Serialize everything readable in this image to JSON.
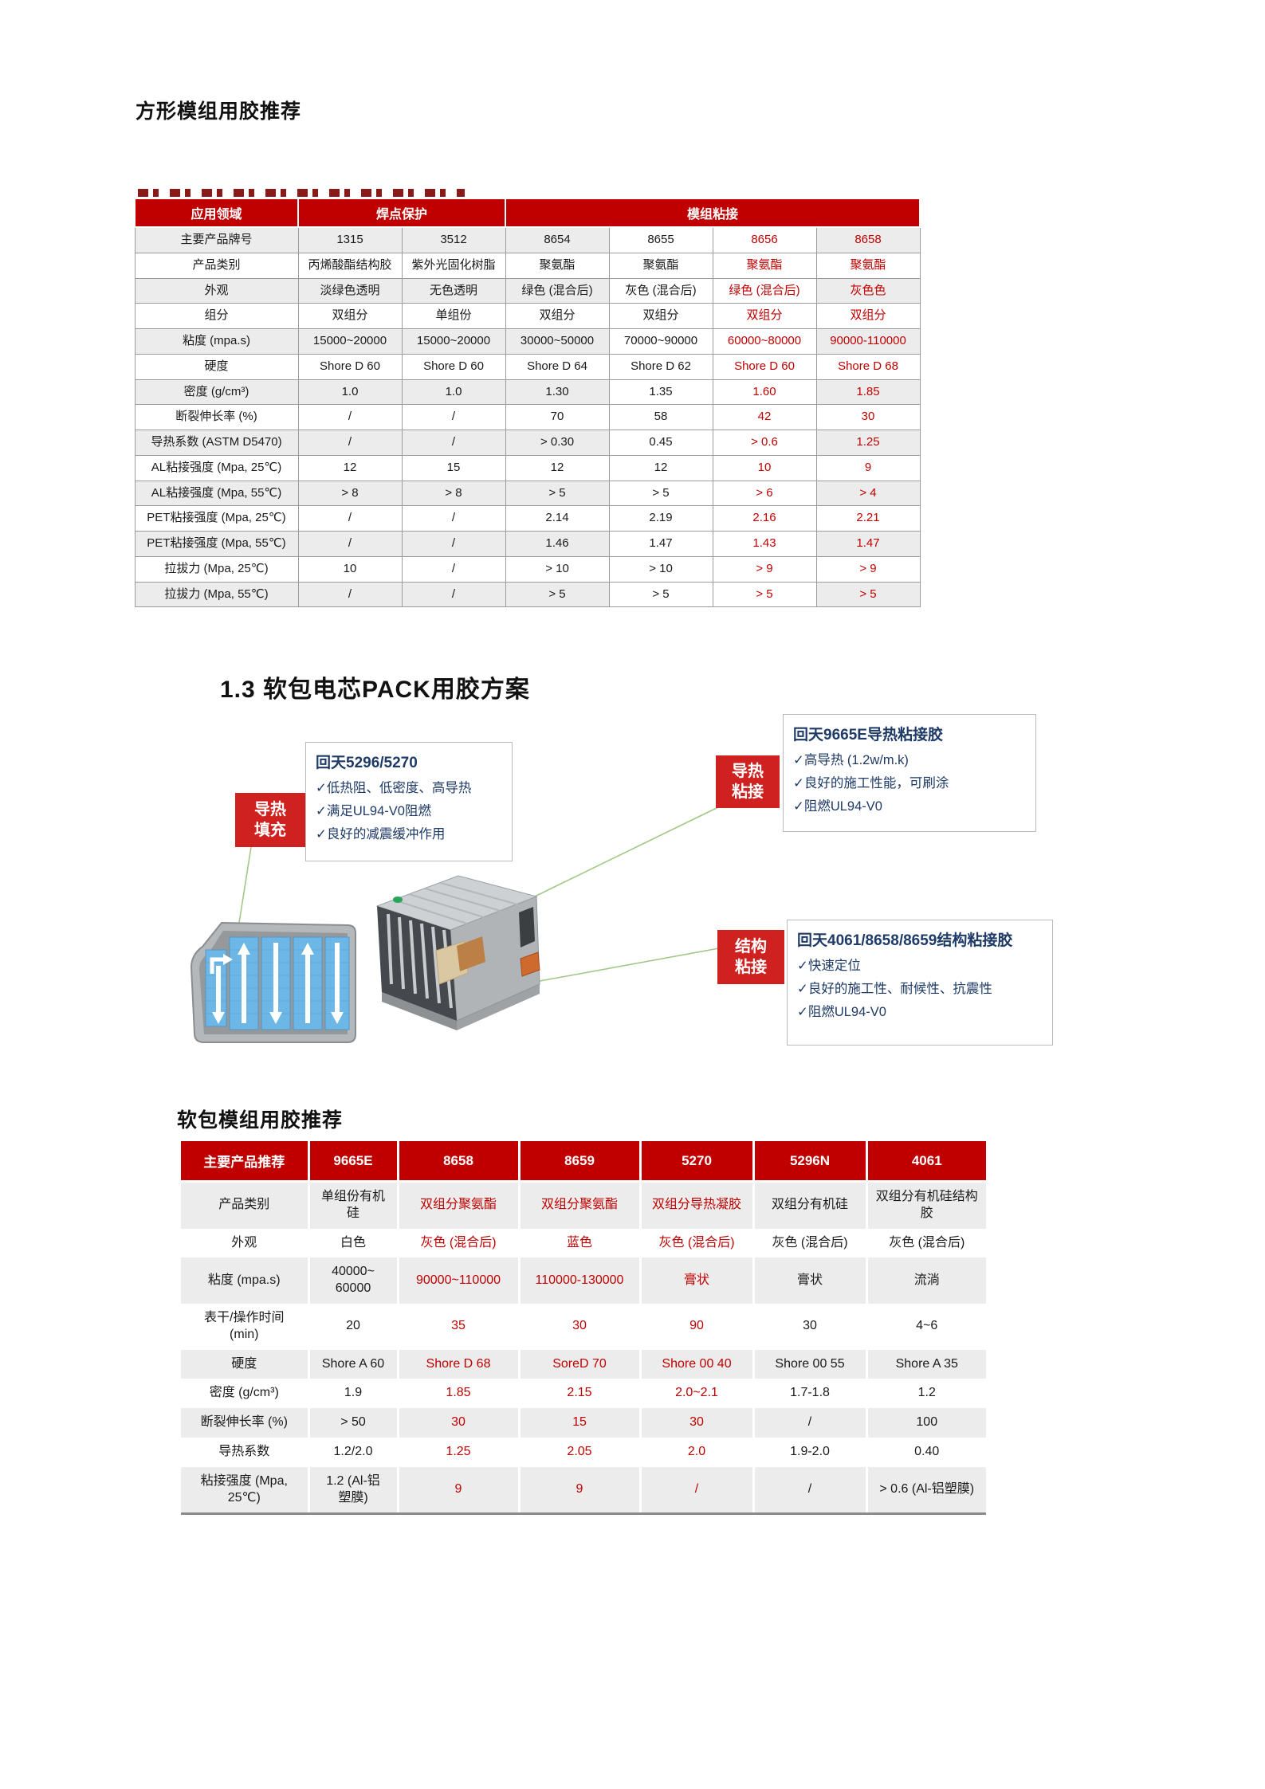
{
  "page": {
    "title1": "方形模组用胶推荐",
    "section_heading": "1.3 软包电芯PACK用胶方案",
    "title2": "软包模组用胶推荐"
  },
  "colors": {
    "band_red": "#c00000",
    "red_text": "#c00000",
    "tag_red": "#cf211f",
    "navy": "#1e3a66",
    "stripe": "#ececec",
    "grid": "#9b9b9b",
    "green_line": "#a2c887"
  },
  "table1": {
    "corner_label": "应用领域",
    "groups": [
      {
        "label": "焊点保护",
        "span": 2
      },
      {
        "label": "模组粘接",
        "span": 4
      }
    ],
    "rows": [
      {
        "label": "主要产品牌号",
        "values": [
          "1315",
          "3512",
          "8654",
          "8655",
          "8656",
          "8658"
        ]
      },
      {
        "label": "产品类别",
        "values": [
          "丙烯酸酯结构胶",
          "紫外光固化树脂",
          "聚氨酯",
          "聚氨酯",
          "聚氨酯",
          "聚氨酯"
        ]
      },
      {
        "label": "外观",
        "values": [
          "淡绿色透明",
          "无色透明",
          "绿色 (混合后)",
          "灰色 (混合后)",
          "绿色 (混合后)",
          "灰色色"
        ]
      },
      {
        "label": "组分",
        "values": [
          "双组分",
          "单组份",
          "双组分",
          "双组分",
          "双组分",
          "双组分"
        ]
      },
      {
        "label": "粘度 (mpa.s)",
        "values": [
          "15000~20000",
          "15000~20000",
          "30000~50000",
          "70000~90000",
          "60000~80000",
          "90000-110000"
        ]
      },
      {
        "label": "硬度",
        "values": [
          "Shore D 60",
          "Shore D 60",
          "Shore D 64",
          "Shore D 62",
          "Shore D 60",
          "Shore D 68"
        ]
      },
      {
        "label": "密度 (g/cm³)",
        "values": [
          "1.0",
          "1.0",
          "1.30",
          "1.35",
          "1.60",
          "1.85"
        ]
      },
      {
        "label": "断裂伸长率 (%)",
        "values": [
          "/",
          "/",
          "70",
          "58",
          "42",
          "30"
        ]
      },
      {
        "label": "导热系数 (ASTM D5470)",
        "values": [
          "/",
          "/",
          "> 0.30",
          "0.45",
          "> 0.6",
          "1.25"
        ]
      },
      {
        "label": "AL粘接强度 (Mpa, 25℃)",
        "values": [
          "12",
          "15",
          "12",
          "12",
          "10",
          "9"
        ]
      },
      {
        "label": "AL粘接强度 (Mpa, 55℃)",
        "values": [
          "> 8",
          "> 8",
          "> 5",
          "> 5",
          "> 6",
          "> 4"
        ]
      },
      {
        "label": "PET粘接强度 (Mpa, 25℃)",
        "values": [
          "/",
          "/",
          "2.14",
          "2.19",
          "2.16",
          "2.21"
        ]
      },
      {
        "label": "PET粘接强度 (Mpa, 55℃)",
        "values": [
          "/",
          "/",
          "1.46",
          "1.47",
          "1.43",
          "1.47"
        ]
      },
      {
        "label": "拉拔力 (Mpa, 25℃)",
        "values": [
          "10",
          "/",
          "> 10",
          "> 10",
          "> 9",
          "> 9"
        ]
      },
      {
        "label": "拉拔力 (Mpa, 55℃)",
        "values": [
          "/",
          "/",
          "> 5",
          "> 5",
          "> 5",
          "> 5"
        ]
      }
    ]
  },
  "callouts": {
    "fill": {
      "tag_lines": [
        "导热",
        "填充"
      ],
      "title": "回天5296/5270",
      "bullets": [
        "低热阻、低密度、高导热",
        "满足UL94-V0阻燃",
        "良好的减震缓冲作用"
      ]
    },
    "bond": {
      "tag_lines": [
        "导热",
        "粘接"
      ],
      "title": "回天9665E导热粘接胶",
      "bullets": [
        "高导热 (1.2w/m.k)",
        "良好的施工性能，可刷涂",
        "阻燃UL94-V0"
      ]
    },
    "struct": {
      "tag_lines": [
        "结构",
        "粘接"
      ],
      "title": "回天4061/8658/8659结构粘接胶",
      "bullets": [
        "快速定位",
        "良好的施工性、耐候性、抗震性",
        "阻燃UL94-V0"
      ]
    }
  },
  "table2": {
    "header": [
      "主要产品推荐",
      "9665E",
      "8658",
      "8659",
      "5270",
      "5296N",
      "4061"
    ],
    "rows": [
      {
        "label": "产品类别",
        "values": [
          "单组份有机\n硅",
          "双组分聚氨酯",
          "双组分聚氨酯",
          "双组分导热凝胶",
          "双组分有机硅",
          "双组分有机硅结构胶"
        ]
      },
      {
        "label": "外观",
        "values": [
          "白色",
          "灰色 (混合后)",
          "蓝色",
          "灰色 (混合后)",
          "灰色 (混合后)",
          "灰色 (混合后)"
        ]
      },
      {
        "label": "粘度 (mpa.s)",
        "values": [
          "40000~\n60000",
          "90000~110000",
          "110000-130000",
          "膏状",
          "膏状",
          "流淌"
        ]
      },
      {
        "label": "表干/操作时间\n(min)",
        "values": [
          "20",
          "35",
          "30",
          "90",
          "30",
          "4~6"
        ]
      },
      {
        "label": "硬度",
        "values": [
          "Shore A 60",
          "Shore D 68",
          "SoreD 70",
          "Shore 00 40",
          "Shore 00 55",
          "Shore A 35"
        ]
      },
      {
        "label": "密度 (g/cm³)",
        "values": [
          "1.9",
          "1.85",
          "2.15",
          "2.0~2.1",
          "1.7-1.8",
          "1.2"
        ]
      },
      {
        "label": "断裂伸长率 (%)",
        "values": [
          "> 50",
          "30",
          "15",
          "30",
          "/",
          "100"
        ]
      },
      {
        "label": "导热系数",
        "values": [
          "1.2/2.0",
          "1.25",
          "2.05",
          "2.0",
          "1.9-2.0",
          "0.40"
        ]
      },
      {
        "label": "粘接强度 (Mpa,\n25℃)",
        "values": [
          "1.2 (Al-铝\n塑膜)",
          "9",
          "9",
          "/",
          "/",
          "> 0.6 (Al-铝塑膜)"
        ]
      }
    ]
  }
}
